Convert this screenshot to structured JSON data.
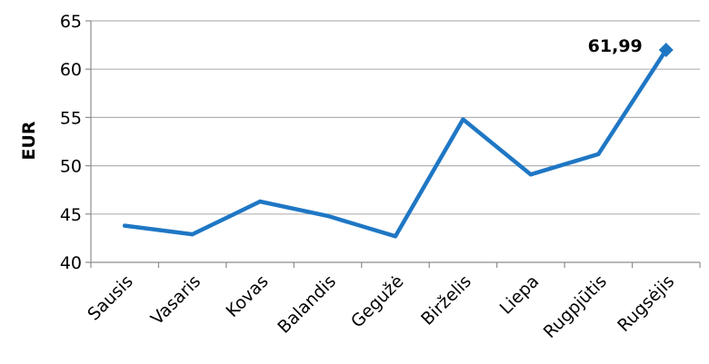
{
  "chart_data": {
    "type": "line",
    "categories": [
      "Sausis",
      "Vasaris",
      "Kovas",
      "Balandis",
      "Gegužė",
      "Birželis",
      "Liepa",
      "Rugpjūtis",
      "Rugsėjis"
    ],
    "series": [
      {
        "values": [
          43.8,
          42.9,
          46.3,
          44.8,
          42.7,
          54.8,
          49.1,
          51.2,
          61.99
        ]
      }
    ],
    "ylabel": "EUR",
    "xlabel": "",
    "ylim": [
      40,
      65
    ],
    "yticks": [
      "40",
      "45",
      "50",
      "55",
      "60",
      "65"
    ],
    "grid": true,
    "annotation": {
      "text": "61,99",
      "category": "Rugsėjis"
    },
    "colors": {
      "line": "#1f77c4",
      "grid": "#b3b3b3",
      "axis": "#8c8c8c"
    }
  }
}
